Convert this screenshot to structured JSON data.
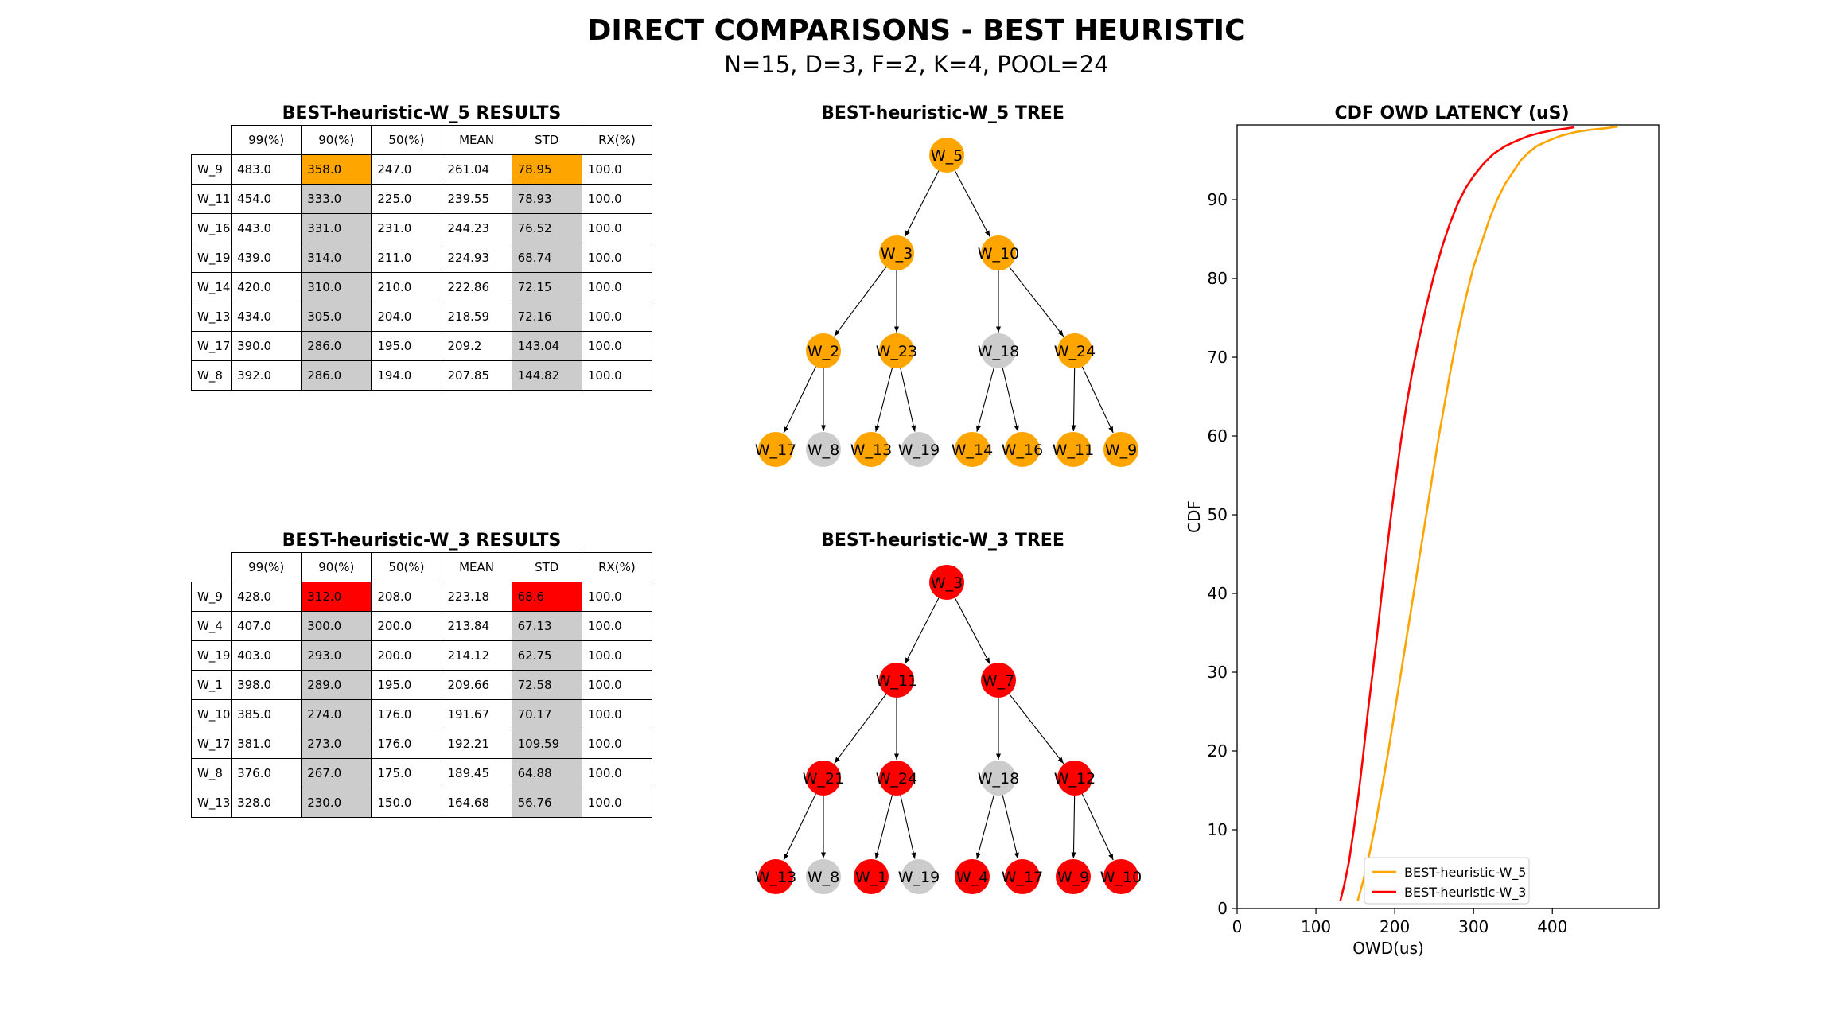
{
  "title": "DIRECT COMPARISONS - BEST HEURISTIC",
  "subtitle": "N=15, D=3, F=2, K=4, POOL=24",
  "colors": {
    "orange": "#FFA500",
    "red": "#FF0000",
    "gray": "#CCCCCC"
  },
  "tables": [
    {
      "title": "BEST-heuristic-W_5 RESULTS",
      "highlight_color": "#FFA500",
      "columns": [
        "99(%)",
        "90(%)",
        "50(%)",
        "MEAN",
        "STD",
        "RX(%)"
      ],
      "rows": [
        {
          "label": "W_9",
          "values": [
            "483.0",
            "358.0",
            "247.0",
            "261.04",
            "78.95",
            "100.0"
          ]
        },
        {
          "label": "W_11",
          "values": [
            "454.0",
            "333.0",
            "225.0",
            "239.55",
            "78.93",
            "100.0"
          ]
        },
        {
          "label": "W_16",
          "values": [
            "443.0",
            "331.0",
            "231.0",
            "244.23",
            "76.52",
            "100.0"
          ]
        },
        {
          "label": "W_19",
          "values": [
            "439.0",
            "314.0",
            "211.0",
            "224.93",
            "68.74",
            "100.0"
          ]
        },
        {
          "label": "W_14",
          "values": [
            "420.0",
            "310.0",
            "210.0",
            "222.86",
            "72.15",
            "100.0"
          ]
        },
        {
          "label": "W_13",
          "values": [
            "434.0",
            "305.0",
            "204.0",
            "218.59",
            "72.16",
            "100.0"
          ]
        },
        {
          "label": "W_17",
          "values": [
            "390.0",
            "286.0",
            "195.0",
            "209.2",
            "143.04",
            "100.0"
          ]
        },
        {
          "label": "W_8",
          "values": [
            "392.0",
            "286.0",
            "194.0",
            "207.85",
            "144.82",
            "100.0"
          ]
        }
      ]
    },
    {
      "title": "BEST-heuristic-W_3 RESULTS",
      "highlight_color": "#FF0000",
      "columns": [
        "99(%)",
        "90(%)",
        "50(%)",
        "MEAN",
        "STD",
        "RX(%)"
      ],
      "rows": [
        {
          "label": "W_9",
          "values": [
            "428.0",
            "312.0",
            "208.0",
            "223.18",
            "68.6",
            "100.0"
          ]
        },
        {
          "label": "W_4",
          "values": [
            "407.0",
            "300.0",
            "200.0",
            "213.84",
            "67.13",
            "100.0"
          ]
        },
        {
          "label": "W_19",
          "values": [
            "403.0",
            "293.0",
            "200.0",
            "214.12",
            "62.75",
            "100.0"
          ]
        },
        {
          "label": "W_1",
          "values": [
            "398.0",
            "289.0",
            "195.0",
            "209.66",
            "72.58",
            "100.0"
          ]
        },
        {
          "label": "W_10",
          "values": [
            "385.0",
            "274.0",
            "176.0",
            "191.67",
            "70.17",
            "100.0"
          ]
        },
        {
          "label": "W_17",
          "values": [
            "381.0",
            "273.0",
            "176.0",
            "192.21",
            "109.59",
            "100.0"
          ]
        },
        {
          "label": "W_8",
          "values": [
            "376.0",
            "267.0",
            "175.0",
            "189.45",
            "64.88",
            "100.0"
          ]
        },
        {
          "label": "W_13",
          "values": [
            "328.0",
            "230.0",
            "150.0",
            "164.68",
            "56.76",
            "100.0"
          ]
        }
      ]
    }
  ],
  "trees": [
    {
      "title": "BEST-heuristic-W_5 TREE",
      "color": "#FFA500",
      "levels": [
        [
          {
            "label": "W_5",
            "active": true
          }
        ],
        [
          {
            "label": "W_3",
            "active": true
          },
          {
            "label": "W_10",
            "active": true
          }
        ],
        [
          {
            "label": "W_2",
            "active": true
          },
          {
            "label": "W_23",
            "active": true
          },
          {
            "label": "W_18",
            "active": false
          },
          {
            "label": "W_24",
            "active": true
          }
        ],
        [
          {
            "label": "W_17",
            "active": true
          },
          {
            "label": "W_8",
            "active": false
          },
          {
            "label": "W_13",
            "active": true
          },
          {
            "label": "W_19",
            "active": false
          },
          {
            "label": "W_14",
            "active": true
          },
          {
            "label": "W_16",
            "active": true
          },
          {
            "label": "W_11",
            "active": true
          },
          {
            "label": "W_9",
            "active": true
          }
        ]
      ]
    },
    {
      "title": "BEST-heuristic-W_3 TREE",
      "color": "#FF0000",
      "levels": [
        [
          {
            "label": "W_3",
            "active": true
          }
        ],
        [
          {
            "label": "W_11",
            "active": true
          },
          {
            "label": "W_7",
            "active": true
          }
        ],
        [
          {
            "label": "W_21",
            "active": true
          },
          {
            "label": "W_24",
            "active": true
          },
          {
            "label": "W_18",
            "active": false
          },
          {
            "label": "W_12",
            "active": true
          }
        ],
        [
          {
            "label": "W_13",
            "active": true
          },
          {
            "label": "W_8",
            "active": false
          },
          {
            "label": "W_1",
            "active": true
          },
          {
            "label": "W_19",
            "active": false
          },
          {
            "label": "W_4",
            "active": true
          },
          {
            "label": "W_17",
            "active": true
          },
          {
            "label": "W_9",
            "active": true
          },
          {
            "label": "W_10",
            "active": true
          }
        ]
      ]
    }
  ],
  "chart_data": {
    "type": "line",
    "title": "CDF OWD LATENCY (uS)",
    "xlabel": "OWD(us)",
    "ylabel": "CDF",
    "xlim": [
      0,
      535
    ],
    "ylim": [
      0,
      99.5
    ],
    "xticks": [
      0,
      100,
      200,
      300,
      400
    ],
    "yticks": [
      0,
      10,
      20,
      30,
      40,
      50,
      60,
      70,
      80,
      90
    ],
    "grid": false,
    "legend_position": "bottom-center",
    "series": [
      {
        "name": "BEST-heuristic-W_5",
        "color": "#FFA500",
        "x": [
          153,
          160,
          168,
          176,
          184,
          192,
          200,
          208,
          216,
          224,
          232,
          240,
          248,
          256,
          264,
          272,
          280,
          290,
          300,
          310,
          320,
          330,
          340,
          350,
          360,
          370,
          380,
          395,
          410,
          430,
          450,
          470,
          483
        ],
        "y": [
          1,
          3.5,
          7,
          11,
          15.5,
          20,
          25,
          30,
          35,
          40,
          45,
          50,
          55,
          60,
          64.5,
          69,
          73,
          77.5,
          81.5,
          84.5,
          87.5,
          90,
          92,
          93.5,
          95,
          96,
          96.8,
          97.5,
          98.1,
          98.6,
          98.9,
          99.1,
          99.3
        ]
      },
      {
        "name": "BEST-heuristic-W_3",
        "color": "#FF0000",
        "x": [
          131,
          136,
          142,
          148,
          154,
          160,
          166,
          172,
          178,
          184,
          190,
          196,
          202,
          208,
          215,
          222,
          230,
          240,
          250,
          260,
          270,
          280,
          290,
          300,
          312,
          325,
          340,
          355,
          370,
          385,
          400,
          415,
          428
        ],
        "y": [
          1,
          3,
          6,
          10,
          14.5,
          19.5,
          25,
          30,
          35,
          40.5,
          45.5,
          50.5,
          55,
          59.5,
          64,
          68,
          72,
          76.5,
          80.5,
          84,
          87,
          89.5,
          91.5,
          93,
          94.5,
          95.8,
          96.8,
          97.5,
          98.1,
          98.5,
          98.8,
          99.0,
          99.2
        ]
      }
    ]
  }
}
